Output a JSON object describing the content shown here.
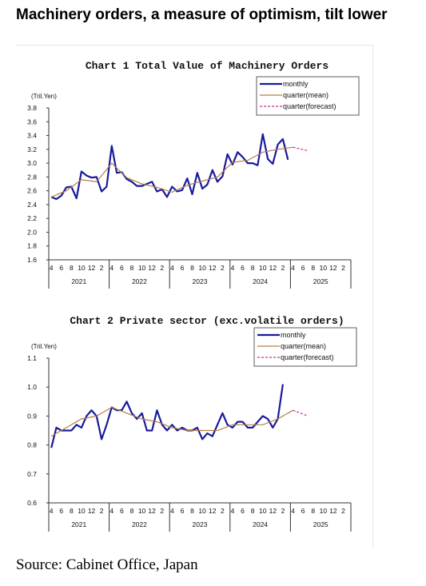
{
  "headline": "Machinery orders, a measure of optimism, tilt lower",
  "source": "Source: Cabinet Office, Japan",
  "colors": {
    "monthly": "#1a1a9c",
    "quarter_mean": "#b0804a",
    "forecast": "#c0309a"
  },
  "chart_data": [
    {
      "type": "line",
      "title": "Chart 1 Total Value of Machinery Orders",
      "ylabel": "(Tril.Yen)",
      "xlabel": "",
      "ylim": [
        1.6,
        3.8
      ],
      "yticks": [
        "1.6",
        "1.8",
        "2.0",
        "2.2",
        "2.4",
        "2.6",
        "2.8",
        "3.0",
        "3.2",
        "3.4",
        "3.6",
        "3.8"
      ],
      "xtick_labels": [
        "4",
        "6",
        "8",
        "10",
        "12",
        "2",
        "4",
        "6",
        "8",
        "10",
        "12",
        "2",
        "4",
        "6",
        "8",
        "10",
        "12",
        "2",
        "4",
        "6",
        "8",
        "10",
        "12",
        "2",
        "4",
        "6",
        "8",
        "10",
        "12",
        "2"
      ],
      "years": [
        "2021",
        "2022",
        "2023",
        "2024",
        "2025"
      ],
      "grid": false,
      "legend_position": "top-right",
      "legend": [
        "monthly",
        "quarter(mean)",
        "quarter(forecast)"
      ],
      "series": [
        {
          "name": "monthly",
          "values": [
            2.51,
            2.48,
            2.53,
            2.65,
            2.66,
            2.49,
            2.88,
            2.82,
            2.79,
            2.8,
            2.59,
            2.66,
            3.25,
            2.86,
            2.87,
            2.77,
            2.73,
            2.67,
            2.67,
            2.7,
            2.73,
            2.59,
            2.62,
            2.51,
            2.66,
            2.59,
            2.61,
            2.78,
            2.55,
            2.86,
            2.63,
            2.69,
            2.9,
            2.73,
            2.81,
            3.13,
            2.98,
            3.16,
            3.09,
            3.0,
            3.0,
            2.97,
            3.42,
            3.06,
            2.99,
            3.27,
            3.35,
            3.05
          ]
        },
        {
          "name": "quarter(mean)",
          "values": [
            2.51,
            2.6,
            2.76,
            2.73,
            3.0,
            2.79,
            2.7,
            2.65,
            2.58,
            2.68,
            2.74,
            2.8,
            3.01,
            3.04,
            3.16,
            3.2,
            3.23
          ]
        },
        {
          "name": "quarter(forecast)",
          "values": [
            3.23,
            3.18
          ]
        }
      ]
    },
    {
      "type": "line",
      "title": "Chart 2 Private sector (exc.volatile orders)",
      "ylabel": "(Tril.Yen)",
      "xlabel": "",
      "ylim": [
        0.6,
        1.1
      ],
      "yticks": [
        "0.6",
        "0.7",
        "0.8",
        "0.9",
        "1.0",
        "1.1"
      ],
      "xtick_labels": [
        "4",
        "6",
        "8",
        "10",
        "12",
        "2",
        "4",
        "6",
        "8",
        "10",
        "12",
        "2",
        "4",
        "6",
        "8",
        "10",
        "12",
        "2",
        "4",
        "6",
        "8",
        "10",
        "12",
        "2",
        "4",
        "6",
        "8",
        "10",
        "12",
        "2"
      ],
      "years": [
        "2021",
        "2022",
        "2023",
        "2024",
        "2025"
      ],
      "grid": false,
      "legend_position": "top-right",
      "legend": [
        "monthly",
        "quarter(mean)",
        "quarter(forecast)"
      ],
      "series": [
        {
          "name": "monthly",
          "values": [
            0.79,
            0.86,
            0.85,
            0.85,
            0.85,
            0.87,
            0.86,
            0.9,
            0.92,
            0.9,
            0.82,
            0.87,
            0.93,
            0.92,
            0.92,
            0.95,
            0.91,
            0.89,
            0.91,
            0.85,
            0.85,
            0.92,
            0.87,
            0.85,
            0.87,
            0.85,
            0.86,
            0.85,
            0.85,
            0.86,
            0.82,
            0.84,
            0.83,
            0.87,
            0.91,
            0.87,
            0.86,
            0.88,
            0.88,
            0.86,
            0.86,
            0.88,
            0.9,
            0.89,
            0.86,
            0.89,
            1.01
          ]
        },
        {
          "name": "quarter(mean)",
          "values": [
            0.83,
            0.86,
            0.89,
            0.9,
            0.93,
            0.91,
            0.89,
            0.88,
            0.86,
            0.85,
            0.85,
            0.85,
            0.87,
            0.87,
            0.87,
            0.89,
            0.92
          ]
        },
        {
          "name": "quarter(forecast)",
          "values": [
            0.92,
            0.9
          ]
        }
      ]
    }
  ]
}
